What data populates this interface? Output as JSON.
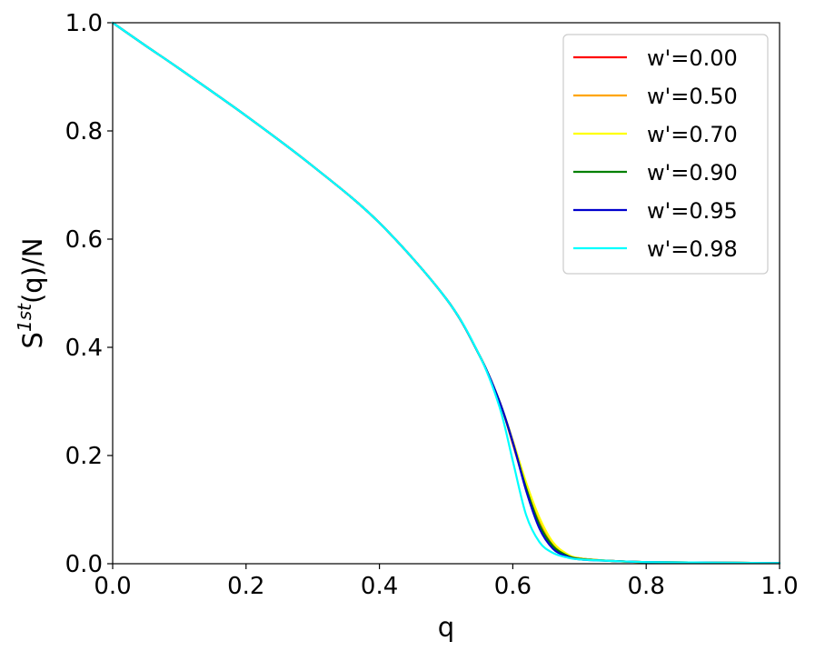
{
  "chart_data": {
    "type": "line",
    "title": "",
    "xlabel": "q",
    "ylabel": "S^{1st}(q)/N",
    "ylabel_parts": {
      "base": "S",
      "sup": "1st",
      "rest": "(q)/N"
    },
    "xlim": [
      0.0,
      1.0
    ],
    "ylim": [
      0.0,
      1.0
    ],
    "xticks": [
      "0.0",
      "0.2",
      "0.4",
      "0.6",
      "0.8",
      "1.0"
    ],
    "yticks": [
      "0.0",
      "0.2",
      "0.4",
      "0.6",
      "0.8",
      "1.0"
    ],
    "grid": false,
    "legend_position": "top-right",
    "series": [
      {
        "name": "w'=0.00",
        "color": "#ff0000",
        "x": [
          0,
          0.05,
          0.1,
          0.2,
          0.3,
          0.4,
          0.5,
          0.55,
          0.58,
          0.6,
          0.62,
          0.64,
          0.66,
          0.68,
          0.7,
          0.75,
          0.8,
          0.9,
          1.0
        ],
        "y": [
          1.0,
          0.957,
          0.915,
          0.828,
          0.735,
          0.63,
          0.49,
          0.385,
          0.3,
          0.222,
          0.14,
          0.075,
          0.035,
          0.017,
          0.01,
          0.005,
          0.003,
          0.002,
          0.001
        ]
      },
      {
        "name": "w'=0.50",
        "color": "#ffa500",
        "x": [
          0,
          0.05,
          0.1,
          0.2,
          0.3,
          0.4,
          0.5,
          0.55,
          0.58,
          0.6,
          0.62,
          0.64,
          0.66,
          0.68,
          0.7,
          0.75,
          0.8,
          0.9,
          1.0
        ],
        "y": [
          1.0,
          0.957,
          0.915,
          0.828,
          0.735,
          0.63,
          0.49,
          0.385,
          0.3,
          0.225,
          0.145,
          0.08,
          0.038,
          0.018,
          0.01,
          0.005,
          0.003,
          0.002,
          0.001
        ]
      },
      {
        "name": "w'=0.70",
        "color": "#ffff00",
        "x": [
          0,
          0.05,
          0.1,
          0.2,
          0.3,
          0.4,
          0.5,
          0.55,
          0.58,
          0.6,
          0.62,
          0.64,
          0.66,
          0.68,
          0.7,
          0.75,
          0.8,
          0.9,
          1.0
        ],
        "y": [
          1.0,
          0.957,
          0.915,
          0.828,
          0.735,
          0.63,
          0.49,
          0.385,
          0.3,
          0.228,
          0.15,
          0.085,
          0.04,
          0.019,
          0.01,
          0.005,
          0.003,
          0.002,
          0.001
        ]
      },
      {
        "name": "w'=0.90",
        "color": "#008000",
        "x": [
          0,
          0.05,
          0.1,
          0.2,
          0.3,
          0.4,
          0.5,
          0.55,
          0.58,
          0.6,
          0.62,
          0.64,
          0.66,
          0.68,
          0.7,
          0.75,
          0.8,
          0.9,
          1.0
        ],
        "y": [
          1.0,
          0.957,
          0.915,
          0.828,
          0.735,
          0.63,
          0.49,
          0.385,
          0.3,
          0.224,
          0.14,
          0.072,
          0.033,
          0.016,
          0.009,
          0.005,
          0.003,
          0.002,
          0.001
        ]
      },
      {
        "name": "w'=0.95",
        "color": "#0000cd",
        "x": [
          0,
          0.05,
          0.1,
          0.2,
          0.3,
          0.4,
          0.5,
          0.55,
          0.58,
          0.6,
          0.62,
          0.64,
          0.66,
          0.68,
          0.7,
          0.75,
          0.8,
          0.9,
          1.0
        ],
        "y": [
          1.0,
          0.957,
          0.915,
          0.828,
          0.735,
          0.63,
          0.49,
          0.385,
          0.3,
          0.225,
          0.135,
          0.065,
          0.028,
          0.014,
          0.008,
          0.005,
          0.003,
          0.002,
          0.001
        ]
      },
      {
        "name": "w'=0.98",
        "color": "#00ffff",
        "x": [
          0,
          0.05,
          0.1,
          0.2,
          0.3,
          0.4,
          0.5,
          0.55,
          0.58,
          0.6,
          0.62,
          0.64,
          0.66,
          0.68,
          0.7,
          0.75,
          0.8,
          0.9,
          1.0
        ],
        "y": [
          1.0,
          0.957,
          0.915,
          0.828,
          0.735,
          0.63,
          0.49,
          0.385,
          0.29,
          0.19,
          0.09,
          0.04,
          0.02,
          0.012,
          0.008,
          0.005,
          0.003,
          0.002,
          0.001
        ]
      }
    ]
  }
}
